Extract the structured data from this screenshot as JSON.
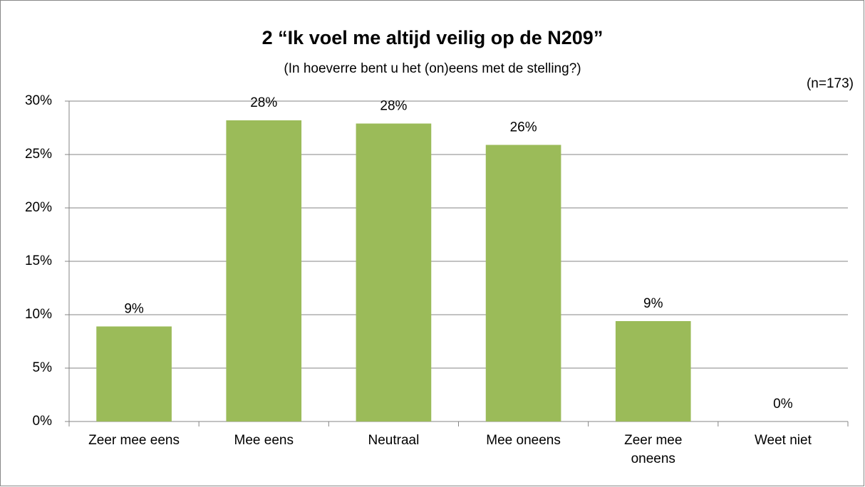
{
  "chart_data": {
    "type": "bar",
    "title": "2 “Ik voel me altijd veilig op de N209”",
    "subtitle": "(In hoeverre bent u het (on)eens met de stelling?)",
    "annotation": "(n=173)",
    "categories": [
      "Zeer mee eens",
      "Mee eens",
      "Neutraal",
      "Mee oneens",
      "Zeer mee oneens",
      "Weet niet"
    ],
    "values": [
      8.9,
      28.2,
      27.9,
      25.9,
      9.4,
      0
    ],
    "value_labels": [
      "9%",
      "28%",
      "28%",
      "26%",
      "9%",
      "0%"
    ],
    "color": "#9bbb59",
    "ylim": [
      0,
      30
    ],
    "yticks": [
      {
        "value": 0,
        "label": "0%"
      },
      {
        "value": 5,
        "label": "5%"
      },
      {
        "value": 10,
        "label": "10%"
      },
      {
        "value": 15,
        "label": "15%"
      },
      {
        "value": 20,
        "label": "20%"
      },
      {
        "value": 25,
        "label": "25%"
      },
      {
        "value": 30,
        "label": "30%"
      }
    ],
    "grid": true
  }
}
